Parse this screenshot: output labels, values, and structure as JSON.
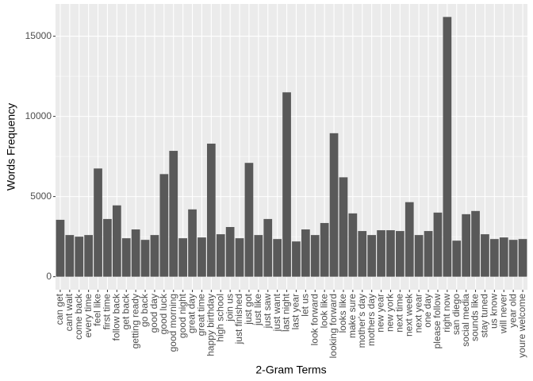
{
  "chart_data": {
    "type": "bar",
    "x_label": "2-Gram Terms",
    "y_label": "Words Frequency",
    "categories": [
      "can get",
      "cant wait",
      "come back",
      "every time",
      "feel like",
      "first time",
      "follow back",
      "get back",
      "getting ready",
      "go back",
      "good day",
      "good luck",
      "good morning",
      "good night",
      "great day",
      "great time",
      "happy birthday",
      "high school",
      "join us",
      "just finished",
      "just got",
      "just like",
      "just saw",
      "just want",
      "last night",
      "last year",
      "let us",
      "look forward",
      "look like",
      "looking forward",
      "looks like",
      "make sure",
      "mother's day",
      "mothers day",
      "new year",
      "new york",
      "next time",
      "next week",
      "next year",
      "one day",
      "please follow",
      "right now",
      "san diego",
      "social media",
      "sounds like",
      "stay tuned",
      "us know",
      "will never",
      "year old",
      "youre welcome"
    ],
    "values": [
      3550,
      2600,
      2500,
      2600,
      6750,
      3600,
      4450,
      2400,
      2950,
      2300,
      2600,
      6400,
      7850,
      2400,
      4200,
      2450,
      8300,
      2650,
      3100,
      2400,
      7100,
      2600,
      3600,
      2350,
      11500,
      2200,
      2950,
      2600,
      3350,
      8950,
      6200,
      3950,
      2850,
      2600,
      2900,
      2900,
      2850,
      4650,
      2600,
      2850,
      4000,
      16200,
      2250,
      3900,
      4100,
      2650,
      2350,
      2450,
      2300,
      2350
    ],
    "color": "#595959",
    "ylim": [
      -810,
      17010
    ],
    "yticks": [
      0,
      5000,
      10000,
      15000
    ],
    "grid": true
  }
}
